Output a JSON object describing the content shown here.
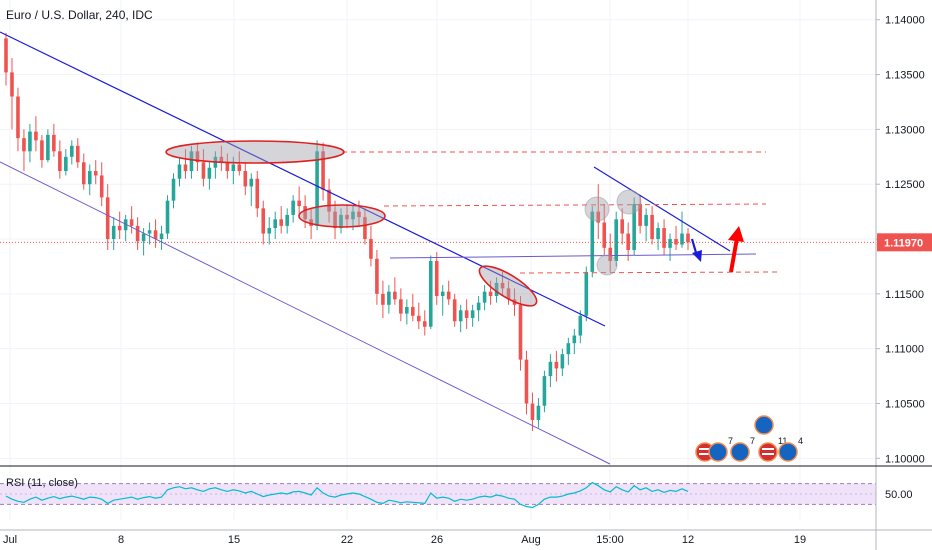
{
  "chart_data": {
    "type": "candlestick",
    "title": "Euro / U.S. Dollar, 240, IDC",
    "ylim": [
      1.0993,
      1.1418
    ],
    "y_ticks": [
      "1.14000",
      "1.13500",
      "1.13000",
      "1.12500",
      "1.12000",
      "1.11500",
      "1.11000",
      "1.10500",
      "1.10000"
    ],
    "y_tick_values": [
      1.14,
      1.135,
      1.13,
      1.125,
      1.12,
      1.115,
      1.11,
      1.105,
      1.1
    ],
    "x_ticks": [
      "Jul",
      "8",
      "15",
      "22",
      "26",
      "Aug",
      "15:00",
      "12",
      "19"
    ],
    "current_price": "1.11970",
    "current_price_value": 1.1197,
    "colors": {
      "up": "#26a69a",
      "down": "#ef5350",
      "price_line": "#ef5350",
      "rsi_line": "#00bcd4",
      "rsi_band": "#e9d5f5",
      "trend_line": "#1a1adb",
      "channel_line": "#6a5acd",
      "level_line": "#ef5350",
      "arrow_up": "#ff0000",
      "arrow_down": "#1a1adb",
      "grid": "#f0f3fa"
    },
    "candles": [
      [
        1.1383,
        1.1388,
        1.134,
        1.1352
      ],
      [
        1.1352,
        1.1365,
        1.13,
        1.133
      ],
      [
        1.133,
        1.1338,
        1.128,
        1.1292
      ],
      [
        1.1292,
        1.13,
        1.1262,
        1.128
      ],
      [
        1.128,
        1.1305,
        1.127,
        1.1298
      ],
      [
        1.1298,
        1.1312,
        1.128,
        1.129
      ],
      [
        1.129,
        1.1295,
        1.1265,
        1.1272
      ],
      [
        1.1272,
        1.13,
        1.127,
        1.1295
      ],
      [
        1.1295,
        1.1305,
        1.1275,
        1.128
      ],
      [
        1.128,
        1.129,
        1.1255,
        1.1262
      ],
      [
        1.1262,
        1.1282,
        1.1258,
        1.1275
      ],
      [
        1.1275,
        1.129,
        1.1268,
        1.1285
      ],
      [
        1.1285,
        1.1292,
        1.1265,
        1.127
      ],
      [
        1.127,
        1.1278,
        1.1245,
        1.125
      ],
      [
        1.125,
        1.1268,
        1.124,
        1.1262
      ],
      [
        1.1262,
        1.1272,
        1.125,
        1.1258
      ],
      [
        1.1258,
        1.127,
        1.123,
        1.1238
      ],
      [
        1.1238,
        1.125,
        1.119,
        1.12
      ],
      [
        1.12,
        1.122,
        1.119,
        1.1212
      ],
      [
        1.1212,
        1.1225,
        1.12,
        1.1208
      ],
      [
        1.1208,
        1.1222,
        1.1198,
        1.1218
      ],
      [
        1.1218,
        1.123,
        1.1205,
        1.1212
      ],
      [
        1.1212,
        1.122,
        1.119,
        1.1198
      ],
      [
        1.1198,
        1.121,
        1.1185,
        1.1205
      ],
      [
        1.1205,
        1.1215,
        1.1195,
        1.1208
      ],
      [
        1.1208,
        1.1218,
        1.1192,
        1.12
      ],
      [
        1.12,
        1.1212,
        1.119,
        1.1205
      ],
      [
        1.1205,
        1.124,
        1.12,
        1.1235
      ],
      [
        1.1235,
        1.126,
        1.1228,
        1.1255
      ],
      [
        1.1255,
        1.1275,
        1.1248,
        1.1268
      ],
      [
        1.1268,
        1.1282,
        1.1255,
        1.1262
      ],
      [
        1.1262,
        1.1285,
        1.1255,
        1.128
      ],
      [
        1.128,
        1.1288,
        1.1262,
        1.127
      ],
      [
        1.127,
        1.1282,
        1.1248,
        1.1255
      ],
      [
        1.1255,
        1.127,
        1.1245,
        1.1265
      ],
      [
        1.1265,
        1.128,
        1.1255,
        1.1275
      ],
      [
        1.1275,
        1.1285,
        1.1262,
        1.127
      ],
      [
        1.127,
        1.1278,
        1.1255,
        1.1262
      ],
      [
        1.1262,
        1.1275,
        1.125,
        1.1268
      ],
      [
        1.1268,
        1.128,
        1.1258,
        1.1262
      ],
      [
        1.1262,
        1.127,
        1.124,
        1.1248
      ],
      [
        1.1248,
        1.126,
        1.123,
        1.1255
      ],
      [
        1.1255,
        1.1262,
        1.122,
        1.1228
      ],
      [
        1.1228,
        1.1235,
        1.1195,
        1.1205
      ],
      [
        1.1205,
        1.122,
        1.1195,
        1.121
      ],
      [
        1.121,
        1.1225,
        1.12,
        1.1218
      ],
      [
        1.1218,
        1.123,
        1.1205,
        1.1212
      ],
      [
        1.1212,
        1.1228,
        1.1205,
        1.1222
      ],
      [
        1.1222,
        1.124,
        1.1215,
        1.1235
      ],
      [
        1.1235,
        1.1248,
        1.1222,
        1.123
      ],
      [
        1.123,
        1.124,
        1.121,
        1.1218
      ],
      [
        1.1218,
        1.1228,
        1.12,
        1.1212
      ],
      [
        1.1212,
        1.129,
        1.1208,
        1.128
      ],
      [
        1.128,
        1.1288,
        1.1235,
        1.1245
      ],
      [
        1.1245,
        1.1255,
        1.1215,
        1.1225
      ],
      [
        1.1225,
        1.1235,
        1.12,
        1.121
      ],
      [
        1.121,
        1.1228,
        1.1205,
        1.1222
      ],
      [
        1.1222,
        1.1232,
        1.121,
        1.1218
      ],
      [
        1.1218,
        1.123,
        1.1208,
        1.1225
      ],
      [
        1.1225,
        1.1235,
        1.1212,
        1.122
      ],
      [
        1.122,
        1.1228,
        1.1195,
        1.12
      ],
      [
        1.12,
        1.1212,
        1.1175,
        1.1182
      ],
      [
        1.1182,
        1.119,
        1.114,
        1.115
      ],
      [
        1.115,
        1.1162,
        1.1128,
        1.114
      ],
      [
        1.114,
        1.1158,
        1.1132,
        1.1152
      ],
      [
        1.1152,
        1.1165,
        1.114,
        1.1145
      ],
      [
        1.1145,
        1.1155,
        1.1125,
        1.1132
      ],
      [
        1.1132,
        1.1145,
        1.1122,
        1.1138
      ],
      [
        1.1138,
        1.115,
        1.1125,
        1.113
      ],
      [
        1.113,
        1.1142,
        1.1118,
        1.1125
      ],
      [
        1.1125,
        1.1135,
        1.1112,
        1.112
      ],
      [
        1.112,
        1.1185,
        1.1118,
        1.118
      ],
      [
        1.118,
        1.1188,
        1.114,
        1.1148
      ],
      [
        1.1148,
        1.1158,
        1.113,
        1.1152
      ],
      [
        1.1152,
        1.1162,
        1.114,
        1.1145
      ],
      [
        1.1145,
        1.115,
        1.112,
        1.1125
      ],
      [
        1.1125,
        1.114,
        1.1115,
        1.1135
      ],
      [
        1.1135,
        1.1145,
        1.1118,
        1.1128
      ],
      [
        1.1128,
        1.114,
        1.112,
        1.1135
      ],
      [
        1.1135,
        1.1148,
        1.1125,
        1.1142
      ],
      [
        1.1142,
        1.1158,
        1.1135,
        1.1152
      ],
      [
        1.1152,
        1.1162,
        1.114,
        1.1148
      ],
      [
        1.1148,
        1.1165,
        1.1142,
        1.116
      ],
      [
        1.116,
        1.117,
        1.1148,
        1.1155
      ],
      [
        1.1155,
        1.1162,
        1.114,
        1.1145
      ],
      [
        1.1145,
        1.1155,
        1.113,
        1.114
      ],
      [
        1.114,
        1.1148,
        1.108,
        1.109
      ],
      [
        1.109,
        1.1098,
        1.104,
        1.105
      ],
      [
        1.105,
        1.106,
        1.1025,
        1.1035
      ],
      [
        1.1035,
        1.1055,
        1.1028,
        1.1048
      ],
      [
        1.1048,
        1.108,
        1.1042,
        1.1075
      ],
      [
        1.1075,
        1.1095,
        1.1065,
        1.1088
      ],
      [
        1.1088,
        1.1098,
        1.107,
        1.1082
      ],
      [
        1.1082,
        1.11,
        1.1075,
        1.1095
      ],
      [
        1.1095,
        1.111,
        1.1085,
        1.1105
      ],
      [
        1.1105,
        1.1118,
        1.1095,
        1.1112
      ],
      [
        1.1112,
        1.1135,
        1.1105,
        1.113
      ],
      [
        1.113,
        1.1175,
        1.1125,
        1.117
      ],
      [
        1.117,
        1.123,
        1.1165,
        1.1225
      ],
      [
        1.1225,
        1.125,
        1.12,
        1.1215
      ],
      [
        1.1215,
        1.1232,
        1.1185,
        1.1192
      ],
      [
        1.1192,
        1.1205,
        1.117,
        1.118
      ],
      [
        1.118,
        1.1225,
        1.1175,
        1.1218
      ],
      [
        1.1218,
        1.1228,
        1.1195,
        1.1205
      ],
      [
        1.1205,
        1.1215,
        1.118,
        1.119
      ],
      [
        1.119,
        1.1238,
        1.1185,
        1.1232
      ],
      [
        1.1232,
        1.124,
        1.1205,
        1.1212
      ],
      [
        1.1212,
        1.1228,
        1.1198,
        1.1222
      ],
      [
        1.1222,
        1.123,
        1.1195,
        1.12
      ],
      [
        1.12,
        1.1215,
        1.119,
        1.121
      ],
      [
        1.121,
        1.1218,
        1.1185,
        1.1192
      ],
      [
        1.1192,
        1.1205,
        1.118,
        1.12
      ],
      [
        1.12,
        1.1212,
        1.119,
        1.1195
      ],
      [
        1.1195,
        1.1225,
        1.1192,
        1.1205
      ],
      [
        1.1205,
        1.121,
        1.119,
        1.1197
      ]
    ],
    "rsi": {
      "label": "RSI (11, close)",
      "tick": "50.00",
      "ylim": [
        0,
        100
      ],
      "band": [
        30,
        70
      ],
      "values": [
        46,
        40,
        36,
        34,
        40,
        44,
        38,
        42,
        45,
        41,
        44,
        46,
        43,
        40,
        44,
        43,
        40,
        32,
        38,
        40,
        42,
        44,
        40,
        43,
        45,
        42,
        44,
        58,
        62,
        64,
        60,
        62,
        58,
        55,
        60,
        62,
        58,
        55,
        58,
        56,
        52,
        55,
        50,
        45,
        48,
        50,
        52,
        50,
        54,
        55,
        52,
        48,
        62,
        52,
        46,
        44,
        48,
        50,
        52,
        50,
        45,
        40,
        34,
        32,
        38,
        36,
        33,
        35,
        34,
        33,
        32,
        52,
        42,
        44,
        42,
        36,
        40,
        38,
        40,
        44,
        46,
        44,
        48,
        46,
        42,
        40,
        30,
        26,
        24,
        30,
        40,
        44,
        44,
        46,
        50,
        52,
        56,
        62,
        72,
        66,
        58,
        54,
        64,
        58,
        54,
        66,
        58,
        62,
        55,
        58,
        53,
        57,
        55,
        60,
        55
      ]
    },
    "annotations": [
      "ellipse",
      "ellipse",
      "ellipse",
      "ellipse",
      "circle",
      "circle",
      "circle",
      "arrow-up",
      "arrow-down",
      "trend-line",
      "channel-line"
    ],
    "event_counts": [
      "7",
      "7",
      "11",
      "4"
    ]
  }
}
